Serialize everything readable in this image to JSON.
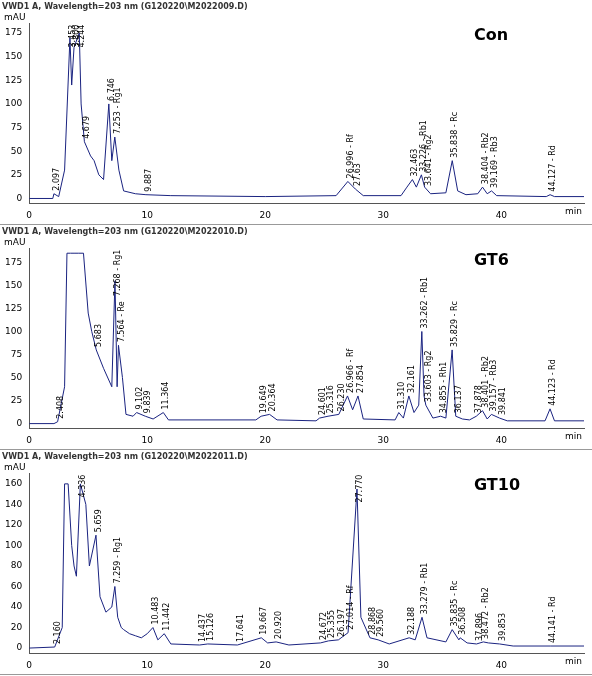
{
  "chart_data": [
    {
      "type": "line",
      "title": "VWD1 A, Wavelength=203 nm (G120220\\M2022009.D)",
      "subtitle": "Con",
      "y_label": "mAU",
      "x_label": "min",
      "color": "#1a2380",
      "grid": false,
      "xlim": [
        0,
        47
      ],
      "xticks": [
        0,
        10,
        20,
        30,
        40
      ],
      "ylim": [
        -5,
        185
      ],
      "yticks": [
        0,
        25,
        50,
        75,
        100,
        125,
        150,
        175
      ],
      "x": [
        0,
        2.0,
        2.097,
        2.5,
        3.0,
        3.453,
        3.6,
        3.8,
        4.244,
        4.4,
        4.679,
        5.2,
        5.5,
        5.9,
        6.3,
        6.746,
        7.0,
        7.253,
        7.6,
        8.0,
        9.0,
        9.887,
        12,
        20,
        26.0,
        26.996,
        27.63,
        28.3,
        31.5,
        32.0,
        32.463,
        32.8,
        33.226,
        33.5,
        33.641,
        34.0,
        35.3,
        35.838,
        36.3,
        37.0,
        38.0,
        38.404,
        38.8,
        39.169,
        39.6,
        43.8,
        44.127,
        44.5,
        47
      ],
      "values": [
        0,
        0,
        5,
        2,
        30,
        170,
        120,
        160,
        175,
        100,
        60,
        45,
        40,
        25,
        20,
        100,
        40,
        65,
        30,
        8,
        5,
        4,
        3,
        2,
        3,
        18,
        10,
        3,
        3,
        12,
        20,
        12,
        25,
        12,
        10,
        5,
        6,
        40,
        8,
        4,
        5,
        12,
        5,
        8,
        3,
        2,
        4,
        2,
        2
      ],
      "annotations": [
        {
          "x": 2.097,
          "label": "2.097"
        },
        {
          "x": 3.453,
          "label": "3.453"
        },
        {
          "x": 3.8,
          "label": "3.800"
        },
        {
          "x": 4.244,
          "label": "4.244"
        },
        {
          "x": 4.679,
          "label": "4.679"
        },
        {
          "x": 6.746,
          "label": "6.746"
        },
        {
          "x": 7.253,
          "label": "7.253 - Rg1"
        },
        {
          "x": 9.887,
          "label": "9.887"
        },
        {
          "x": 26.996,
          "label": "26.996 - Rf"
        },
        {
          "x": 27.63,
          "label": "27.63"
        },
        {
          "x": 32.463,
          "label": "32.463"
        },
        {
          "x": 33.226,
          "label": "33.226 - Rb1"
        },
        {
          "x": 33.641,
          "label": "33.641 - Rg2"
        },
        {
          "x": 35.838,
          "label": "35.838 - Rc"
        },
        {
          "x": 38.404,
          "label": "38.404 - Rb2"
        },
        {
          "x": 39.169,
          "label": "39.169 - Rb3"
        },
        {
          "x": 44.127,
          "label": "44.127 - Rd"
        }
      ]
    },
    {
      "type": "line",
      "title": "VWD1 A, Wavelength=203 nm (G120220\\M2022010.D)",
      "subtitle": "GT6",
      "y_label": "mAU",
      "x_label": "min",
      "color": "#1a2380",
      "grid": false,
      "xlim": [
        0,
        47
      ],
      "xticks": [
        0,
        10,
        20,
        30,
        40
      ],
      "ylim": [
        -5,
        190
      ],
      "yticks": [
        0,
        25,
        50,
        75,
        100,
        125,
        150,
        175
      ],
      "x": [
        0,
        2.1,
        2.408,
        3.0,
        3.2,
        3.5,
        3.8,
        4.2,
        4.6,
        5.0,
        5.3,
        5.683,
        6.3,
        7.0,
        7.268,
        7.45,
        7.564,
        7.9,
        8.2,
        8.8,
        9.102,
        9.839,
        10.5,
        11.364,
        11.8,
        19.2,
        19.649,
        20.364,
        21.0,
        24.3,
        24.601,
        25.316,
        26.23,
        26.966,
        27.4,
        27.854,
        28.3,
        31.0,
        31.31,
        31.7,
        32.161,
        32.6,
        33.0,
        33.262,
        33.45,
        33.603,
        34.2,
        34.855,
        35.3,
        35.829,
        36.137,
        36.7,
        37.3,
        37.878,
        38.401,
        38.8,
        39.157,
        39.841,
        40.5,
        43.7,
        44.123,
        44.5,
        47
      ],
      "values": [
        0,
        0,
        2,
        40,
        185,
        185,
        185,
        185,
        185,
        120,
        100,
        80,
        60,
        40,
        155,
        40,
        85,
        50,
        10,
        8,
        12,
        8,
        5,
        12,
        4,
        4,
        8,
        10,
        4,
        3,
        6,
        8,
        10,
        30,
        15,
        30,
        5,
        4,
        12,
        6,
        30,
        12,
        20,
        100,
        30,
        20,
        6,
        8,
        6,
        80,
        8,
        5,
        4,
        8,
        14,
        5,
        10,
        6,
        3,
        3,
        16,
        3,
        3
      ],
      "annotations": [
        {
          "x": 2.408,
          "label": "2.408"
        },
        {
          "x": 5.683,
          "label": "5.683"
        },
        {
          "x": 7.268,
          "label": "7.268 - Rg1"
        },
        {
          "x": 7.564,
          "label": "7.564 - Re"
        },
        {
          "x": 9.102,
          "label": "9.102"
        },
        {
          "x": 9.839,
          "label": "9.839"
        },
        {
          "x": 11.364,
          "label": "11.364"
        },
        {
          "x": 19.649,
          "label": "19.649"
        },
        {
          "x": 20.364,
          "label": "20.364"
        },
        {
          "x": 24.601,
          "label": "24.601"
        },
        {
          "x": 25.316,
          "label": "25.316"
        },
        {
          "x": 26.23,
          "label": "26.230"
        },
        {
          "x": 26.966,
          "label": "26.966 - Rf"
        },
        {
          "x": 27.854,
          "label": "27.854"
        },
        {
          "x": 31.31,
          "label": "31.310"
        },
        {
          "x": 32.161,
          "label": "32.161"
        },
        {
          "x": 33.262,
          "label": "33.262 - Rb1"
        },
        {
          "x": 33.603,
          "label": "33.603 - Rg2"
        },
        {
          "x": 34.855,
          "label": "34.855 - Rh1"
        },
        {
          "x": 35.829,
          "label": "35.829 - Rc"
        },
        {
          "x": 36.137,
          "label": "36.137"
        },
        {
          "x": 37.878,
          "label": "37.878"
        },
        {
          "x": 38.401,
          "label": "38.401 - Rb2"
        },
        {
          "x": 39.157,
          "label": "39.157 - Rb3"
        },
        {
          "x": 39.841,
          "label": "39.841"
        },
        {
          "x": 44.123,
          "label": "44.123 - Rd"
        }
      ]
    },
    {
      "type": "line",
      "title": "VWD1 A, Wavelength=203 nm (G120220\\M2022011.D)",
      "subtitle": "GT10",
      "y_label": "mAU",
      "x_label": "min",
      "color": "#1a2380",
      "grid": false,
      "xlim": [
        0,
        47
      ],
      "xticks": [
        0,
        10,
        20,
        30,
        40
      ],
      "ylim": [
        -5,
        170
      ],
      "yticks": [
        0,
        20,
        40,
        60,
        80,
        100,
        120,
        140,
        160
      ],
      "x": [
        0,
        2.16,
        2.8,
        3.0,
        3.3,
        3.6,
        3.8,
        4.0,
        4.336,
        4.8,
        5.1,
        5.659,
        6.0,
        6.5,
        7.0,
        7.259,
        7.5,
        7.8,
        8.0,
        8.5,
        9.0,
        9.5,
        10.0,
        10.483,
        10.9,
        11.442,
        12.0,
        14.437,
        15.126,
        17.641,
        19.667,
        20.2,
        20.92,
        22.0,
        24.672,
        25.355,
        26.197,
        27.014,
        27.77,
        28.1,
        28.868,
        29.56,
        30.5,
        32.188,
        32.7,
        33.279,
        33.7,
        35.3,
        35.835,
        36.4,
        36.508,
        37.1,
        37.896,
        38.472,
        38.9,
        39.853,
        41.0,
        44.141,
        47
      ],
      "values": [
        0,
        1,
        20,
        160,
        160,
        100,
        80,
        70,
        160,
        140,
        80,
        110,
        50,
        35,
        40,
        60,
        30,
        20,
        18,
        14,
        12,
        10,
        14,
        20,
        8,
        14,
        4,
        3,
        4,
        3,
        10,
        5,
        6,
        3,
        5,
        7,
        8,
        15,
        155,
        30,
        10,
        8,
        4,
        10,
        8,
        30,
        10,
        6,
        18,
        8,
        10,
        5,
        4,
        6,
        5,
        4,
        2,
        2,
        2
      ],
      "annotations": [
        {
          "x": 2.16,
          "label": "2.160"
        },
        {
          "x": 4.336,
          "label": "4.336"
        },
        {
          "x": 5.659,
          "label": "5.659"
        },
        {
          "x": 7.259,
          "label": "7.259 - Rg1"
        },
        {
          "x": 10.483,
          "label": "10.483"
        },
        {
          "x": 11.442,
          "label": "11.442"
        },
        {
          "x": 14.437,
          "label": "14.437"
        },
        {
          "x": 15.126,
          "label": "15.126"
        },
        {
          "x": 17.641,
          "label": "17.641"
        },
        {
          "x": 19.667,
          "label": "19.667"
        },
        {
          "x": 20.92,
          "label": "20.920"
        },
        {
          "x": 24.672,
          "label": "24.672"
        },
        {
          "x": 25.355,
          "label": "25.355"
        },
        {
          "x": 26.197,
          "label": "26.197"
        },
        {
          "x": 27.014,
          "label": "27.014 - Rf"
        },
        {
          "x": 27.77,
          "label": "27.770"
        },
        {
          "x": 28.868,
          "label": "28.868"
        },
        {
          "x": 29.56,
          "label": "29.560"
        },
        {
          "x": 32.188,
          "label": "32.188"
        },
        {
          "x": 33.279,
          "label": "33.279 - Rb1"
        },
        {
          "x": 35.835,
          "label": "35.835 - Rc"
        },
        {
          "x": 36.508,
          "label": "36.508"
        },
        {
          "x": 37.896,
          "label": "37.896"
        },
        {
          "x": 38.472,
          "label": "38.472 - Rb2"
        },
        {
          "x": 39.853,
          "label": "39.853"
        },
        {
          "x": 44.141,
          "label": "44.141 - Rd"
        }
      ]
    }
  ]
}
